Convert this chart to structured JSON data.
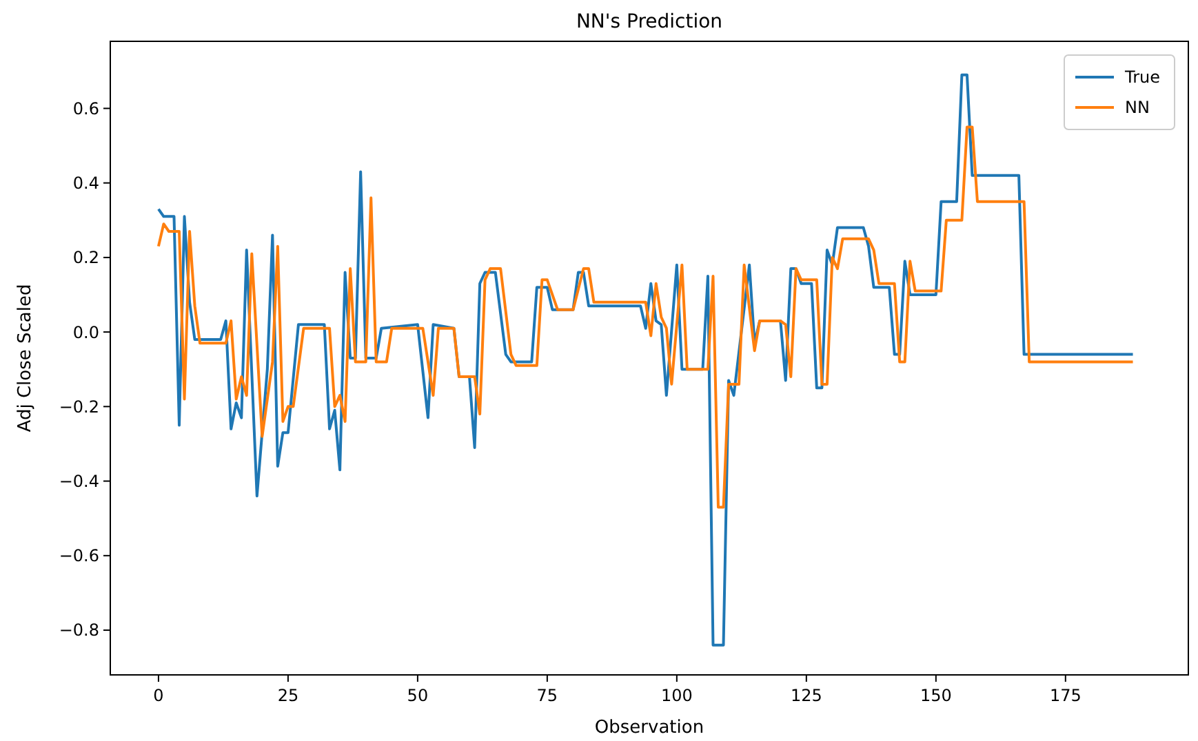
{
  "chart_data": {
    "type": "line",
    "title": "NN's Prediction",
    "xlabel": "Observation",
    "ylabel": "Adj Close Scaled",
    "xlim": [
      -9.3,
      198.7
    ],
    "xticks": [
      0,
      25,
      50,
      75,
      100,
      125,
      150,
      175
    ],
    "ylim": [
      -0.92,
      0.78
    ],
    "yticks": [
      {
        "value": -0.8,
        "label": "−0.8"
      },
      {
        "value": -0.6,
        "label": "−0.6"
      },
      {
        "value": -0.4,
        "label": "−0.4"
      },
      {
        "value": -0.2,
        "label": "−0.2"
      },
      {
        "value": 0,
        "label": "0.0"
      },
      0.2,
      0.4,
      0.6
    ],
    "grid": false,
    "legend": "top right",
    "series": [
      {
        "name": "True",
        "color": "#1f77b4",
        "x": [
          0,
          1,
          3,
          4,
          5,
          6,
          7,
          12,
          13,
          14,
          15,
          16,
          17,
          19,
          21,
          22,
          23,
          24,
          25,
          27,
          32,
          33,
          34,
          35,
          36,
          37,
          38,
          39,
          40,
          42,
          43,
          50,
          52,
          53,
          57,
          58,
          60,
          61,
          62,
          63,
          65,
          67,
          68,
          72,
          73,
          75,
          76,
          80,
          81,
          82,
          83,
          93,
          94,
          95,
          96,
          97,
          98,
          100,
          101,
          105,
          106,
          107,
          109,
          110,
          111,
          114,
          115,
          116,
          120,
          121,
          122,
          123,
          124,
          126,
          127,
          128,
          129,
          130,
          131,
          136,
          137,
          138,
          141,
          142,
          143,
          144,
          145,
          150,
          151,
          154,
          155,
          156,
          157,
          166,
          167,
          188
        ],
        "values": [
          0.33,
          0.31,
          0.31,
          -0.25,
          0.31,
          0.08,
          -0.02,
          -0.02,
          0.03,
          -0.26,
          -0.19,
          -0.23,
          0.22,
          -0.44,
          -0.1,
          0.26,
          -0.36,
          -0.27,
          -0.27,
          0.02,
          0.02,
          -0.26,
          -0.21,
          -0.37,
          0.16,
          -0.07,
          -0.07,
          0.43,
          -0.07,
          -0.07,
          0.01,
          0.02,
          -0.23,
          0.02,
          0.01,
          -0.12,
          -0.12,
          -0.31,
          0.13,
          0.16,
          0.16,
          -0.06,
          -0.08,
          -0.08,
          0.12,
          0.12,
          0.06,
          0.06,
          0.16,
          0.16,
          0.07,
          0.07,
          0.01,
          0.13,
          0.03,
          0.02,
          -0.17,
          0.18,
          -0.1,
          -0.1,
          0.15,
          -0.84,
          -0.84,
          -0.13,
          -0.17,
          0.18,
          -0.03,
          0.03,
          0.03,
          -0.13,
          0.17,
          0.17,
          0.13,
          0.13,
          -0.15,
          -0.15,
          0.22,
          0.18,
          0.28,
          0.28,
          0.23,
          0.12,
          0.12,
          -0.06,
          -0.06,
          0.19,
          0.1,
          0.1,
          0.35,
          0.35,
          0.69,
          0.69,
          0.42,
          0.42,
          -0.06,
          -0.06
        ]
      },
      {
        "name": "NN",
        "color": "#ff7f0e",
        "x": [
          0,
          1,
          2,
          4,
          5,
          6,
          7,
          8,
          13,
          14,
          15,
          16,
          17,
          18,
          20,
          22,
          23,
          24,
          25,
          26,
          28,
          33,
          34,
          35,
          36,
          37,
          38,
          40,
          41,
          42,
          44,
          45,
          51,
          53,
          54,
          57,
          58,
          61,
          62,
          63,
          64,
          66,
          68,
          69,
          73,
          74,
          75,
          77,
          80,
          82,
          83,
          84,
          94,
          95,
          96,
          97,
          98,
          99,
          101,
          102,
          106,
          107,
          108,
          109,
          110,
          112,
          113,
          115,
          116,
          120,
          121,
          122,
          123,
          124,
          127,
          128,
          129,
          130,
          131,
          132,
          137,
          138,
          139,
          142,
          143,
          144,
          145,
          146,
          151,
          152,
          155,
          156,
          157,
          158,
          167,
          168,
          188
        ],
        "values": [
          0.23,
          0.29,
          0.27,
          0.27,
          -0.18,
          0.27,
          0.07,
          -0.03,
          -0.03,
          0.03,
          -0.18,
          -0.12,
          -0.17,
          0.21,
          -0.28,
          -0.08,
          0.23,
          -0.24,
          -0.2,
          -0.2,
          0.01,
          0.01,
          -0.2,
          -0.17,
          -0.24,
          0.17,
          -0.08,
          -0.08,
          0.36,
          -0.08,
          -0.08,
          0.01,
          0.01,
          -0.17,
          0.01,
          0.01,
          -0.12,
          -0.12,
          -0.22,
          0.14,
          0.17,
          0.17,
          -0.06,
          -0.09,
          -0.09,
          0.14,
          0.14,
          0.06,
          0.06,
          0.17,
          0.17,
          0.08,
          0.08,
          -0.01,
          0.13,
          0.04,
          0.01,
          -0.14,
          0.18,
          -0.1,
          -0.1,
          0.15,
          -0.47,
          -0.47,
          -0.14,
          -0.14,
          0.18,
          -0.05,
          0.03,
          0.03,
          0.02,
          -0.12,
          0.17,
          0.14,
          0.14,
          -0.14,
          -0.14,
          0.2,
          0.17,
          0.25,
          0.25,
          0.22,
          0.13,
          0.13,
          -0.08,
          -0.08,
          0.19,
          0.11,
          0.11,
          0.3,
          0.3,
          0.55,
          0.55,
          0.35,
          0.35,
          -0.08,
          -0.08
        ]
      }
    ]
  }
}
